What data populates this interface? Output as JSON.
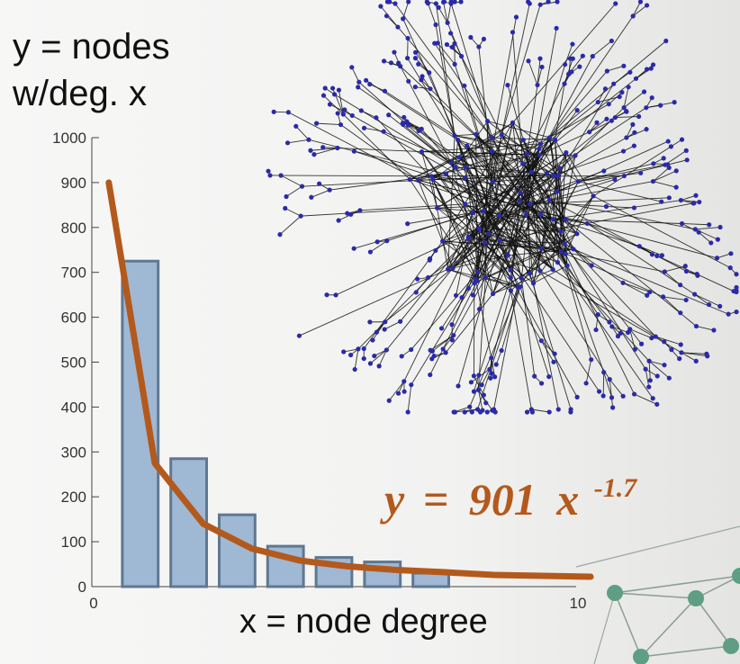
{
  "ylabel_lines": [
    "y = nodes",
    "w/deg. x"
  ],
  "xlabel": "x = node degree",
  "equation": {
    "lhs": "y",
    "op": "=",
    "coef": "901",
    "base": "x",
    "exponent": "-1.7"
  },
  "colors": {
    "bar_fill": "#9fb8d4",
    "bar_stroke": "#5f7892",
    "curve": "#b4591c",
    "network_node": "#2a2aa8",
    "network_edge": "#111111",
    "corner_node": "#5e9e85"
  },
  "chart_data": {
    "type": "bar",
    "xlim": [
      0,
      10
    ],
    "ylim": [
      0,
      1000
    ],
    "yticks": [
      0,
      100,
      200,
      300,
      400,
      500,
      600,
      700,
      800,
      900,
      1000
    ],
    "xtick_labels": [
      "0",
      "10"
    ],
    "categories": [
      1,
      2,
      3,
      4,
      5,
      6,
      7
    ],
    "values": [
      725,
      285,
      160,
      90,
      65,
      55,
      30
    ],
    "fit": {
      "name": "y = 901 x^-1.7",
      "x": [
        0.35,
        1.3,
        2.3,
        3.3,
        4.3,
        5.3,
        6.3,
        7.3,
        8.3,
        9.3,
        10.3
      ],
      "y": [
        900,
        275,
        140,
        85,
        58,
        45,
        37,
        32,
        26,
        24,
        22
      ]
    }
  }
}
